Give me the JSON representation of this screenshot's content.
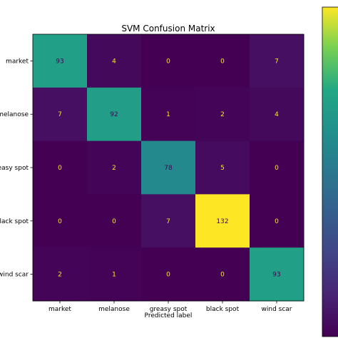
{
  "chart_data": {
    "type": "heatmap",
    "title": "SVM Confusion Matrix",
    "xlabel": "Predicted label",
    "ylabel": "",
    "x_categories": [
      "market",
      "melanose",
      "greasy spot",
      "black spot",
      "wind scar"
    ],
    "y_categories": [
      "market",
      "melanose",
      "greasy spot",
      "black spot",
      "wind scar"
    ],
    "y_tick_labels_visible": [
      "market",
      "melanose",
      "easy spot",
      "lack spot",
      "wind scar"
    ],
    "values": [
      [
        93,
        4,
        0,
        0,
        7
      ],
      [
        7,
        92,
        1,
        2,
        4
      ],
      [
        0,
        2,
        78,
        5,
        0
      ],
      [
        0,
        0,
        7,
        132,
        0
      ],
      [
        2,
        1,
        0,
        0,
        93
      ]
    ],
    "colormap": "viridis",
    "vmin": 0,
    "vmax": 132,
    "colorbar": true,
    "grid": false,
    "colors": {
      "low_text": "#fde725",
      "high_text": "#440154"
    }
  }
}
